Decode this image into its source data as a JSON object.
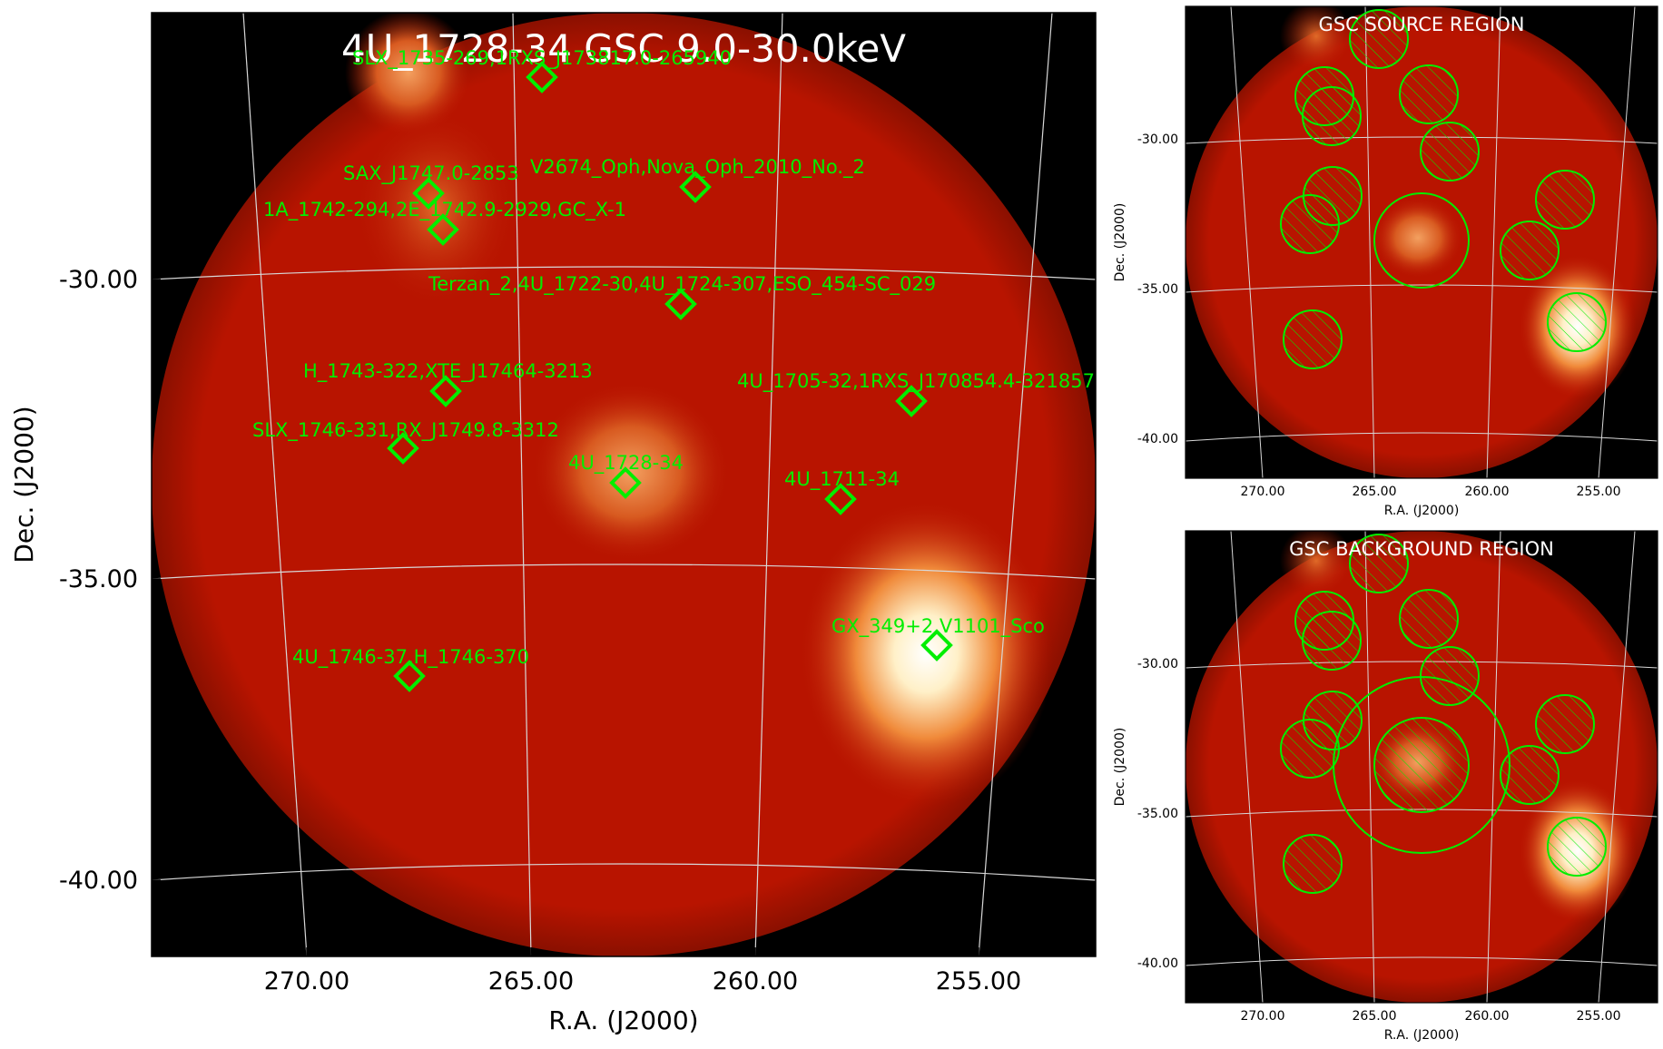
{
  "main_panel": {
    "title": "4U_1728-34 GSC 9.0-30.0keV",
    "xlabel": "R.A. (J2000)",
    "ylabel": "Dec. (J2000)",
    "xticks": [
      "270.00",
      "265.00",
      "260.00",
      "255.00"
    ],
    "yticks": [
      "-30.00",
      "-35.00",
      "-40.00"
    ],
    "sources": [
      {
        "label": "SLX_1735-269,1RXS_J173817.0-265940"
      },
      {
        "label": "SAX_J1747.0-2853"
      },
      {
        "label": "V2674_Oph,Nova_Oph_2010_No._2"
      },
      {
        "label": "1A_1742-294,2E_1742.9-2929,GC_X-1"
      },
      {
        "label": "Terzan_2,4U_1722-30,4U_1724-307,ESO_454-SC_029"
      },
      {
        "label": "H_1743-322,XTE_J17464-3213"
      },
      {
        "label": "4U_1705-32,1RXS_J170854.4-321857"
      },
      {
        "label": "SLX_1746-331,RX_J1749.8-3312"
      },
      {
        "label": "4U_1728-34"
      },
      {
        "label": "4U_1711-34"
      },
      {
        "label": "GX_349+2,V1101_Sco"
      },
      {
        "label": "4U_1746-37,H_1746-370"
      }
    ]
  },
  "source_panel": {
    "title": "GSC SOURCE REGION",
    "xlabel": "R.A. (J2000)",
    "ylabel": "Dec. (J2000)",
    "xticks": [
      "270.00",
      "265.00",
      "260.00",
      "255.00"
    ],
    "yticks": [
      "-30.00",
      "-35.00",
      "-40.00"
    ]
  },
  "background_panel": {
    "title": "GSC BACKGROUND REGION",
    "xlabel": "R.A. (J2000)",
    "ylabel": "Dec. (J2000)",
    "xticks": [
      "270.00",
      "265.00",
      "260.00",
      "255.00"
    ],
    "yticks": [
      "-30.00",
      "-35.00",
      "-40.00"
    ]
  },
  "colors": {
    "marker": "#00ee00",
    "field": "#b81400",
    "sky_background": "#000000",
    "grid": "#cccccc"
  }
}
